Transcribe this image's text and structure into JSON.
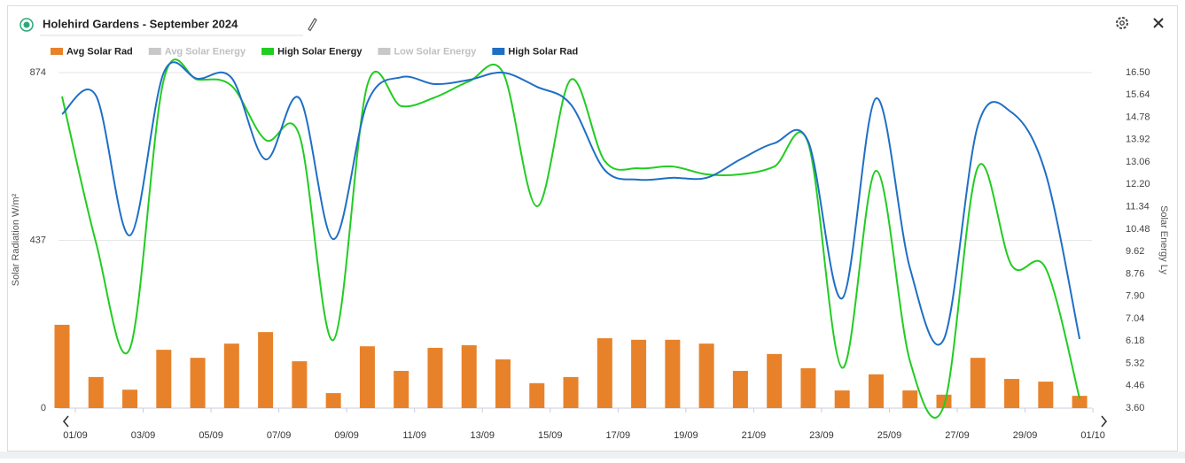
{
  "window": {
    "title": "Holehird Gardens - September 2024"
  },
  "chart_data": {
    "type": "bar_line",
    "ylabel": "Solar Radiation W/m²",
    "y2label": "Solar Energy Ly",
    "categories": [
      "01/09",
      null,
      "03/09",
      null,
      "05/09",
      null,
      "07/09",
      null,
      "09/09",
      null,
      "11/09",
      null,
      "13/09",
      null,
      "15/09",
      null,
      "17/09",
      null,
      "19/09",
      null,
      "21/09",
      null,
      "23/09",
      null,
      "25/09",
      null,
      "27/09",
      null,
      "29/09",
      null,
      "01/10"
    ],
    "ylim": [
      0,
      874
    ],
    "yticks": [
      0,
      437,
      874
    ],
    "y2lim": [
      3.6,
      16.5
    ],
    "y2ticks": [
      {
        "value": 3.6,
        "label": "3.60"
      },
      4.46,
      5.32,
      6.18,
      7.04,
      {
        "value": 7.9,
        "label": "7.90"
      },
      8.76,
      9.62,
      10.48,
      11.34,
      {
        "value": 12.2,
        "label": "12.20"
      },
      13.06,
      13.92,
      14.78,
      15.64,
      {
        "value": 16.5,
        "label": "16.50"
      }
    ],
    "grid": true,
    "series": [
      {
        "name": "Avg Solar Rad",
        "color": "#e8822a",
        "kind": "bar",
        "values": [
          217,
          81,
          48,
          152,
          131,
          168,
          198,
          122,
          39,
          161,
          97,
          157,
          164,
          127,
          65,
          81,
          182,
          178,
          178,
          168,
          97,
          141,
          104,
          46,
          88,
          46,
          35,
          131,
          76,
          69,
          32
        ]
      },
      {
        "name": "Avg Solar Energy",
        "color": "#c8c8c8",
        "visible": false
      },
      {
        "name": "High Solar Energy",
        "color": "#22cc22",
        "kind": "line",
        "axis": "y2",
        "values": [
          15.58,
          9.97,
          5.89,
          16.23,
          16.23,
          15.99,
          13.91,
          14.08,
          6.22,
          16.02,
          15.21,
          15.55,
          16.16,
          16.5,
          11.36,
          16.23,
          13.1,
          12.82,
          12.89,
          12.59,
          12.59,
          12.89,
          13.78,
          5.15,
          12.72,
          5.4,
          3.7,
          12.86,
          9.08,
          8.98,
          3.97
        ]
      },
      {
        "name": "Low Solar Energy",
        "color": "#c8c8c8",
        "visible": false
      },
      {
        "name": "High Solar Rad",
        "color": "#1f6fc5",
        "kind": "line",
        "values": [
          766,
          814,
          450,
          874,
          858,
          860,
          648,
          807,
          440,
          796,
          862,
          844,
          855,
          874,
          837,
          791,
          620,
          595,
          600,
          600,
          648,
          690,
          694,
          286,
          807,
          364,
          180,
          736,
          770,
          611,
          180
        ]
      }
    ]
  }
}
